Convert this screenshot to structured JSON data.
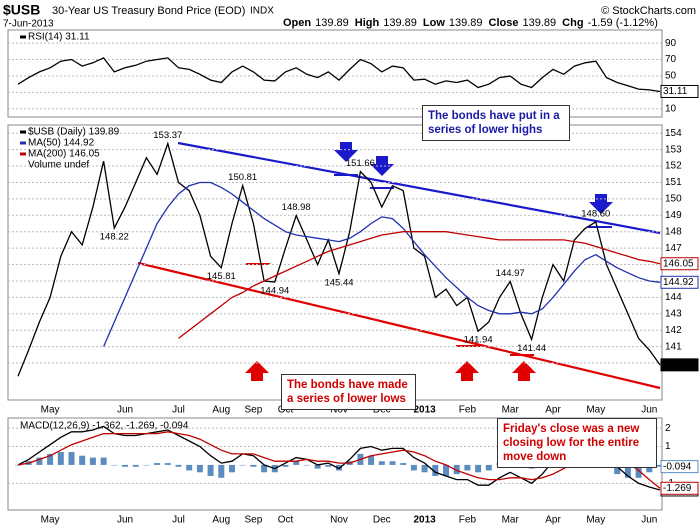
{
  "header": {
    "ticker": "$USB",
    "name": "30-Year US Treasury Bond Price (EOD)",
    "exchange": "INDX",
    "date": "7-Jun-2013",
    "copyright": "© StockCharts.com",
    "quote": [
      {
        "label": "Open",
        "value": "139.89"
      },
      {
        "label": "High",
        "value": "139.89"
      },
      {
        "label": "Low",
        "value": "139.89"
      },
      {
        "label": "Close",
        "value": "139.89"
      },
      {
        "label": "Chg",
        "value": "-1.59 (-1.12%)"
      }
    ]
  },
  "chart_data": [
    {
      "type": "line",
      "ylim": [
        0,
        106
      ],
      "yticks": [
        10,
        30,
        50,
        70,
        90
      ],
      "grid": true,
      "series": [
        {
          "name": "RSI(14) 31.11",
          "color": "#000000",
          "values": [
            40,
            48,
            55,
            60,
            68,
            70,
            62,
            66,
            72,
            55,
            60,
            63,
            68,
            70,
            72,
            60,
            58,
            52,
            45,
            42,
            55,
            62,
            55,
            45,
            44,
            55,
            60,
            52,
            48,
            55,
            45,
            58,
            70,
            65,
            55,
            62,
            60,
            45,
            46,
            40,
            44,
            42,
            45,
            36,
            40,
            48,
            50,
            40,
            36,
            48,
            58,
            52,
            62,
            66,
            68,
            48,
            42,
            38,
            34,
            33,
            31.11
          ]
        }
      ]
    },
    {
      "type": "line",
      "ylim": [
        137.75,
        154.5
      ],
      "yticks": [
        140,
        141,
        142,
        143,
        144,
        145,
        146,
        147,
        148,
        149,
        150,
        151,
        152,
        153,
        154
      ],
      "grid": true,
      "categories": [
        null,
        null,
        null,
        "May",
        null,
        null,
        null,
        null,
        null,
        null,
        "Jun",
        null,
        null,
        null,
        null,
        "Jul",
        null,
        null,
        null,
        "Aug",
        null,
        null,
        "Sep",
        null,
        null,
        "Oct",
        null,
        null,
        null,
        null,
        "Nov",
        null,
        null,
        null,
        "Dec",
        null,
        null,
        null,
        "2013",
        null,
        null,
        null,
        "Feb",
        null,
        null,
        null,
        "Mar",
        null,
        null,
        null,
        "Apr",
        null,
        null,
        null,
        "May",
        null,
        null,
        null,
        null,
        "Jun",
        null
      ],
      "series": [
        {
          "name": "$USB (Daily) 139.89",
          "color": "#000000",
          "values": [
            139.2,
            140.8,
            142.5,
            144,
            146.5,
            148,
            147.2,
            149.5,
            152.3,
            148.22,
            149.5,
            151,
            152.5,
            151.5,
            153.37,
            151,
            150.5,
            149,
            146.5,
            145.81,
            148.5,
            150.81,
            148.5,
            145,
            144.94,
            147,
            148.98,
            147.5,
            146,
            147.5,
            145.44,
            148,
            151.66,
            151,
            149.5,
            150.8,
            150.5,
            147,
            146.5,
            144,
            144.5,
            143.5,
            144,
            141.94,
            142.5,
            144,
            144.97,
            143,
            141.44,
            144,
            146,
            145,
            147.5,
            148.2,
            148.6,
            146,
            144.5,
            143,
            141.5,
            140.8,
            139.89
          ],
          "value_labels": [
            null,
            null,
            null,
            null,
            null,
            null,
            null,
            null,
            null,
            "148.22",
            null,
            null,
            null,
            null,
            "153.37",
            null,
            null,
            null,
            null,
            "145.81",
            null,
            "150.81",
            null,
            null,
            "144.94",
            null,
            "148.98",
            null,
            null,
            null,
            "145.44",
            null,
            "151.66",
            null,
            null,
            null,
            null,
            null,
            null,
            null,
            null,
            null,
            null,
            "141.94",
            null,
            null,
            "144.97",
            null,
            "141.44",
            null,
            null,
            null,
            null,
            null,
            "148.60",
            null,
            null,
            null,
            null,
            null,
            null
          ]
        },
        {
          "name": "MA(50) 144.92",
          "color": "#2030b0",
          "values": [
            null,
            null,
            null,
            null,
            null,
            null,
            null,
            null,
            141,
            142.5,
            144,
            145.5,
            147,
            148.5,
            149.5,
            150.3,
            150.8,
            151,
            151,
            150.7,
            150.3,
            149.8,
            149.3,
            148.8,
            148.4,
            148,
            147.8,
            147.7,
            147.6,
            147.5,
            147.4,
            147.6,
            148,
            148.5,
            148.9,
            148.8,
            148.2,
            147.4,
            146.6,
            145.9,
            145.2,
            144.6,
            144,
            143.5,
            143.2,
            143,
            143,
            143.1,
            143,
            143.3,
            144,
            144.8,
            145.6,
            146.3,
            146.6,
            146.2,
            145.8,
            145.5,
            145.2,
            145,
            144.92
          ]
        },
        {
          "name": "MA(200) 146.05",
          "color": "#c00000",
          "values": [
            null,
            null,
            null,
            null,
            null,
            null,
            null,
            null,
            null,
            null,
            null,
            null,
            null,
            null,
            null,
            141.5,
            142,
            142.5,
            143,
            143.5,
            144,
            144.3,
            144.7,
            145,
            145.3,
            145.6,
            145.9,
            146.2,
            146.5,
            146.8,
            147,
            147.2,
            147.4,
            147.6,
            147.8,
            147.9,
            148,
            148,
            148,
            148,
            148,
            147.9,
            147.8,
            147.7,
            147.6,
            147.5,
            147.5,
            147.5,
            147.5,
            147.5,
            147.5,
            147.5,
            147.4,
            147.3,
            147.1,
            146.9,
            146.7,
            146.5,
            146.3,
            146.2,
            146.05
          ]
        }
      ],
      "legend_extra": "Volume undef",
      "annotations": [
        {
          "text": "The bonds have put in a series of lower highs",
          "color": "#1a1aa6"
        },
        {
          "text": "The bonds have made a series of lower lows",
          "color": "#d00000"
        },
        {
          "text": "Friday's close was a new closing low for the entire move down",
          "color": "#d00000"
        }
      ]
    },
    {
      "type": "line",
      "title": "MACD(12,26,9) -1.362, -1.269, -0.094",
      "ylim": [
        -2.45,
        2.55
      ],
      "yticks": [
        -1,
        1,
        2
      ],
      "grid": true,
      "categories": [
        null,
        null,
        null,
        "May",
        null,
        null,
        null,
        null,
        null,
        null,
        "Jun",
        null,
        null,
        null,
        null,
        "Jul",
        null,
        null,
        null,
        "Aug",
        null,
        null,
        "Sep",
        null,
        null,
        "Oct",
        null,
        null,
        null,
        null,
        "Nov",
        null,
        null,
        null,
        "Dec",
        null,
        null,
        null,
        "2013",
        null,
        null,
        null,
        "Feb",
        null,
        null,
        null,
        "Mar",
        null,
        null,
        null,
        "Apr",
        null,
        null,
        null,
        "May",
        null,
        null,
        null,
        null,
        "Jun",
        null
      ],
      "series": [
        {
          "type": "bar",
          "color": "#5a8cc0",
          "values": [
            0,
            0.2,
            0.4,
            0.6,
            0.7,
            0.7,
            0.5,
            0.4,
            0.4,
            0,
            -0.1,
            -0.1,
            0,
            0.1,
            0.1,
            -0.1,
            -0.3,
            -0.4,
            -0.6,
            -0.7,
            -0.4,
            0,
            -0.1,
            -0.4,
            -0.4,
            -0.1,
            0.2,
            0,
            -0.2,
            -0.1,
            -0.3,
            0.2,
            0.6,
            0.5,
            0.2,
            0.2,
            0.1,
            -0.3,
            -0.4,
            -0.6,
            -0.6,
            -0.5,
            -0.3,
            -0.4,
            -0.3,
            0.1,
            0.3,
            0,
            -0.2,
            0.2,
            0.7,
            0.6,
            0.6,
            0.5,
            0.4,
            -0.1,
            -0.5,
            -0.7,
            -0.7,
            -0.4,
            -0.094
          ]
        },
        {
          "color": "#000000",
          "values": [
            0,
            0.3,
            0.7,
            1.1,
            1.5,
            1.8,
            1.8,
            1.9,
            2.1,
            1.7,
            1.6,
            1.6,
            1.7,
            1.8,
            1.9,
            1.6,
            1.3,
            1,
            0.5,
            0.1,
            0.2,
            0.6,
            0.5,
            0,
            -0.2,
            0.1,
            0.4,
            0.3,
            0,
            0.1,
            -0.2,
            0.3,
            0.9,
            1,
            0.8,
            0.9,
            0.9,
            0.4,
            0.1,
            -0.4,
            -0.6,
            -0.8,
            -0.8,
            -1.1,
            -1.1,
            -0.7,
            -0.4,
            -0.7,
            -1,
            -0.5,
            0.2,
            0.4,
            0.7,
            0.9,
            1,
            0.5,
            -0.1,
            -0.6,
            -1,
            -1.2,
            -1.362
          ]
        },
        {
          "color": "#c00000",
          "values": [
            0,
            0.1,
            0.3,
            0.5,
            0.8,
            1.1,
            1.3,
            1.5,
            1.7,
            1.7,
            1.7,
            1.7,
            1.7,
            1.7,
            1.8,
            1.7,
            1.6,
            1.4,
            1.1,
            0.8,
            0.6,
            0.6,
            0.6,
            0.4,
            0.2,
            0.2,
            0.2,
            0.3,
            0.2,
            0.2,
            0.1,
            0.1,
            0.3,
            0.5,
            0.6,
            0.7,
            0.8,
            0.7,
            0.5,
            0.2,
            0,
            -0.3,
            -0.5,
            -0.7,
            -0.8,
            -0.8,
            -0.7,
            -0.7,
            -0.8,
            -0.7,
            -0.5,
            -0.2,
            0.1,
            0.4,
            0.6,
            0.6,
            0.4,
            0.1,
            -0.3,
            -0.8,
            -1.269
          ]
        }
      ]
    }
  ]
}
